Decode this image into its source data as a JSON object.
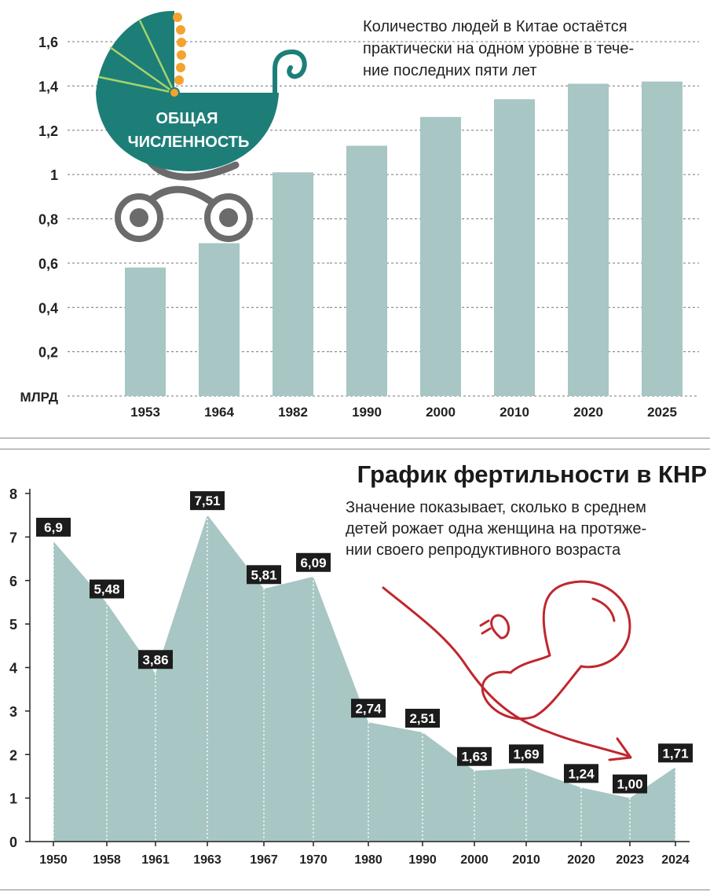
{
  "colors": {
    "bar": "#a7c6c4",
    "area": "#a7c6c4",
    "stroller": "#1d7e78",
    "stroller_accent": "#f5a22e",
    "gray": "#6b6b6b",
    "label_bg": "#1c1c1c",
    "fetus": "#c0272d"
  },
  "top_chart": {
    "note": "Количество людей в Китае остаётся практически на одном уровне в течение последних пяти лет",
    "note_lines": [
      "Количество людей в Китае остаётся",
      "практически на одном уровне в тече-",
      "ние последних пяти лет"
    ],
    "stroller_label_1": "ОБЩАЯ",
    "stroller_label_2": "ЧИСЛЕННОСТЬ",
    "y_ticks": [
      "1,6",
      "1,4",
      "1,2",
      "1",
      "0,8",
      "0,6",
      "0,4",
      "0,2"
    ],
    "unit": "МЛРД",
    "icon": "baby-stroller-icon"
  },
  "bottom_chart": {
    "title": "График фертильности в КНР",
    "subtitle_lines": [
      "Значение показывает, сколько в среднем",
      "детей рожает одна женщина на протяже-",
      "нии своего репродуктивного возраста"
    ],
    "y_ticks": [
      "8",
      "7",
      "6",
      "5",
      "4",
      "3",
      "2",
      "1",
      "0"
    ],
    "value_labels": [
      "6,9",
      "5,48",
      "3,86",
      "7,51",
      "5,81",
      "6,09",
      "2,74",
      "2,51",
      "1,63",
      "1,69",
      "1,24",
      "1,00",
      "1,71"
    ],
    "icon": "fetus-icon"
  },
  "chart_data": [
    {
      "type": "bar",
      "categories": [
        "1953",
        "1964",
        "1982",
        "1990",
        "2000",
        "2010",
        "2020",
        "2025"
      ],
      "values": [
        0.58,
        0.69,
        1.01,
        1.13,
        1.26,
        1.34,
        1.41,
        1.42
      ],
      "ylim": [
        0,
        1.6
      ],
      "ylabel": "МЛРД",
      "grid": "horizontal dashed"
    },
    {
      "type": "area",
      "title": "График фертильности в КНР",
      "x": [
        "1950",
        "1958",
        "1961",
        "1963",
        "1967",
        "1970",
        "1980",
        "1990",
        "2000",
        "2010",
        "2020",
        "2023",
        "2024"
      ],
      "values": [
        6.9,
        5.48,
        3.86,
        7.51,
        5.81,
        6.09,
        2.74,
        2.51,
        1.63,
        1.69,
        1.24,
        1.0,
        1.71
      ],
      "ylim": [
        0,
        8
      ]
    }
  ]
}
